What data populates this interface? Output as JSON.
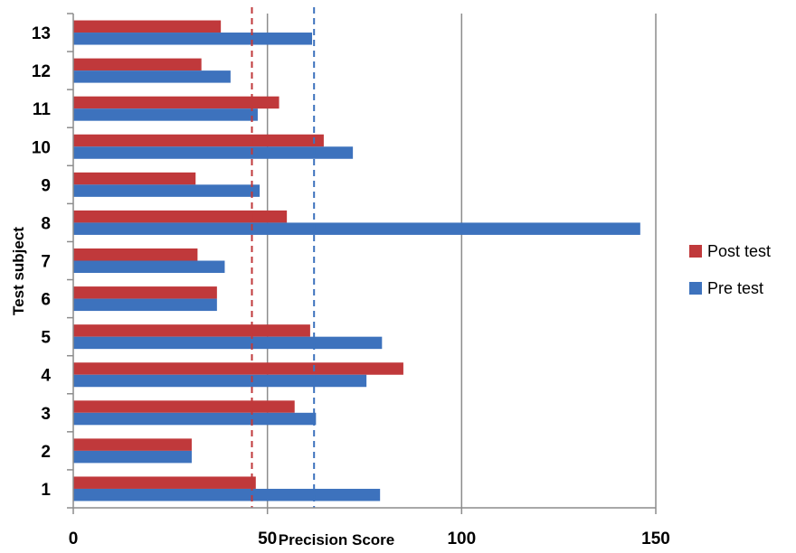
{
  "chart_data": {
    "type": "bar",
    "orientation": "horizontal",
    "categories": [
      "1",
      "2",
      "3",
      "4",
      "5",
      "6",
      "7",
      "8",
      "9",
      "10",
      "11",
      "12",
      "13"
    ],
    "series": [
      {
        "name": "Post test",
        "color": "#C0393B",
        "values": [
          47,
          30.5,
          57,
          85,
          61,
          37,
          32,
          55,
          31.5,
          64.5,
          53,
          33,
          38
        ]
      },
      {
        "name": "Pre test",
        "color": "#3D72BD",
        "values": [
          79,
          30.5,
          62.5,
          75.5,
          79.5,
          37,
          39,
          146,
          48,
          72,
          47.5,
          40.5,
          61.5
        ]
      }
    ],
    "xlabel": "Precision Score",
    "ylabel": "Test subject",
    "xlim": [
      0,
      150
    ],
    "xticks": [
      0,
      50,
      100,
      150
    ],
    "grid": "vertical",
    "legend_position": "right",
    "reference_lines": [
      {
        "value": 46,
        "color": "#C0393B",
        "style": "dashed"
      },
      {
        "value": 62,
        "color": "#3D72BD",
        "style": "dashed"
      }
    ]
  }
}
